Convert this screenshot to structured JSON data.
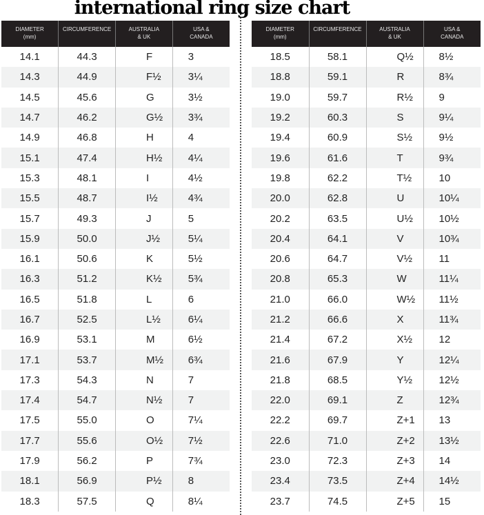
{
  "chart_data": {
    "type": "table",
    "title": "international ring size chart",
    "columns": [
      "DIAMETER (mm)",
      "CIRCUMFERENCE",
      "AUSTRALIA & UK",
      "USA & CANADA"
    ],
    "header_lines": [
      [
        "DIAMETER",
        "(mm)"
      ],
      [
        "CIRCUMFERENCE",
        ""
      ],
      [
        "AUSTRALIA",
        "& UK"
      ],
      [
        "USA &",
        "CANADA"
      ]
    ],
    "left_rows": [
      [
        "14.1",
        "44.3",
        "F",
        "3"
      ],
      [
        "14.3",
        "44.9",
        "F½",
        "3¼"
      ],
      [
        "14.5",
        "45.6",
        "G",
        "3½"
      ],
      [
        "14.7",
        "46.2",
        "G½",
        "3¾"
      ],
      [
        "14.9",
        "46.8",
        "H",
        "4"
      ],
      [
        "15.1",
        "47.4",
        "H½",
        "4¼"
      ],
      [
        "15.3",
        "48.1",
        "I",
        "4½"
      ],
      [
        "15.5",
        "48.7",
        "I½",
        "4¾"
      ],
      [
        "15.7",
        "49.3",
        "J",
        "5"
      ],
      [
        "15.9",
        "50.0",
        "J½",
        "5¼"
      ],
      [
        "16.1",
        "50.6",
        "K",
        "5½"
      ],
      [
        "16.3",
        "51.2",
        "K½",
        "5¾"
      ],
      [
        "16.5",
        "51.8",
        "L",
        "6"
      ],
      [
        "16.7",
        "52.5",
        "L½",
        "6¼"
      ],
      [
        "16.9",
        "53.1",
        "M",
        "6½"
      ],
      [
        "17.1",
        "53.7",
        "M½",
        "6¾"
      ],
      [
        "17.3",
        "54.3",
        "N",
        "7"
      ],
      [
        "17.4",
        "54.7",
        "N½",
        "7"
      ],
      [
        "17.5",
        "55.0",
        "O",
        "7¼"
      ],
      [
        "17.7",
        "55.6",
        "O½",
        "7½"
      ],
      [
        "17.9",
        "56.2",
        "P",
        "7¾"
      ],
      [
        "18.1",
        "56.9",
        "P½",
        "8"
      ],
      [
        "18.3",
        "57.5",
        "Q",
        "8¼"
      ]
    ],
    "right_rows": [
      [
        "18.5",
        "58.1",
        "Q½",
        "8½"
      ],
      [
        "18.8",
        "59.1",
        "R",
        "8¾"
      ],
      [
        "19.0",
        "59.7",
        "R½",
        "9"
      ],
      [
        "19.2",
        "60.3",
        "S",
        "9¼"
      ],
      [
        "19.4",
        "60.9",
        "S½",
        "9½"
      ],
      [
        "19.6",
        "61.6",
        "T",
        "9¾"
      ],
      [
        "19.8",
        "62.2",
        "T½",
        "10"
      ],
      [
        "20.0",
        "62.8",
        "U",
        "10¼"
      ],
      [
        "20.2",
        "63.5",
        "U½",
        "10½"
      ],
      [
        "20.4",
        "64.1",
        "V",
        "10¾"
      ],
      [
        "20.6",
        "64.7",
        "V½",
        "11"
      ],
      [
        "20.8",
        "65.3",
        "W",
        "11¼"
      ],
      [
        "21.0",
        "66.0",
        "W½",
        "11½"
      ],
      [
        "21.2",
        "66.6",
        "X",
        "11¾"
      ],
      [
        "21.4",
        "67.2",
        "X½",
        "12"
      ],
      [
        "21.6",
        "67.9",
        "Y",
        "12¼"
      ],
      [
        "21.8",
        "68.5",
        "Y½",
        "12½"
      ],
      [
        "22.0",
        "69.1",
        "Z",
        "12¾"
      ],
      [
        "22.2",
        "69.7",
        "Z+1",
        "13"
      ],
      [
        "22.6",
        "71.0",
        "Z+2",
        "13½"
      ],
      [
        "23.0",
        "72.3",
        "Z+3",
        "14"
      ],
      [
        "23.4",
        "73.5",
        "Z+4",
        "14½"
      ],
      [
        "23.7",
        "74.5",
        "Z+5",
        "15"
      ]
    ],
    "colors": {
      "header_bg": "#231f20",
      "header_text": "#e8e8e8",
      "stripe": "#f1f2f2"
    }
  }
}
